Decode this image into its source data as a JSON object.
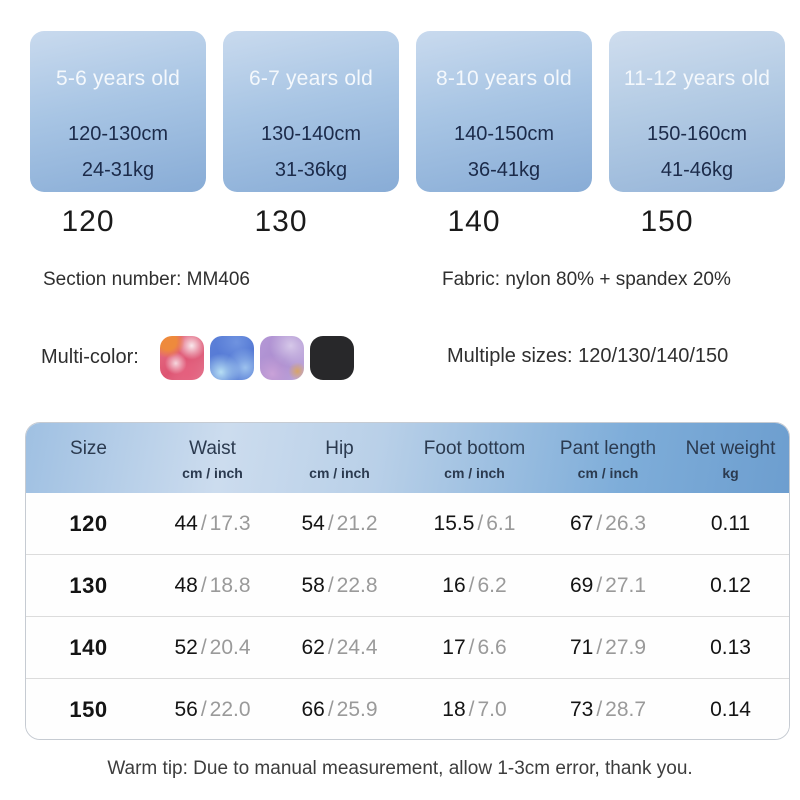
{
  "cards": [
    {
      "age": "5-6 years old",
      "height": "120-130cm",
      "weight": "24-31kg",
      "size": "120"
    },
    {
      "age": "6-7 years old",
      "height": "130-140cm",
      "weight": "31-36kg",
      "size": "130"
    },
    {
      "age": "8-10 years old",
      "height": "140-150cm",
      "weight": "36-41kg",
      "size": "140"
    },
    {
      "age": "11-12 years old",
      "height": "150-160cm",
      "weight": "41-46kg",
      "size": "150"
    }
  ],
  "info": {
    "section_number": "Section number: MM406",
    "fabric": "Fabric: nylon 80% + spandex 20%",
    "multicolor_label": "Multi-color:",
    "multiple_sizes": "Multiple sizes: 120/130/140/150",
    "swatches": [
      {
        "name": "pink-orange-marble",
        "colors": [
          "#e87186",
          "#ee8a3c",
          "#f8e4e9"
        ]
      },
      {
        "name": "blue-marble",
        "colors": [
          "#5c80d8",
          "#b6def4"
        ]
      },
      {
        "name": "purple-marble",
        "colors": [
          "#b598d6",
          "#d6c8e9"
        ]
      },
      {
        "name": "black",
        "colors": [
          "#28282a"
        ]
      }
    ]
  },
  "table": {
    "divider": "/",
    "columns": [
      {
        "label": "Size",
        "unit": ""
      },
      {
        "label": "Waist",
        "unit": "cm / inch"
      },
      {
        "label": "Hip",
        "unit": "cm / inch"
      },
      {
        "label": "Foot bottom",
        "unit": "cm / inch"
      },
      {
        "label": "Pant length",
        "unit": "cm / inch"
      },
      {
        "label": "Net weight",
        "unit": "kg"
      }
    ],
    "rows": [
      {
        "size": "120",
        "waist": {
          "cm": "44",
          "inch": "17.3"
        },
        "hip": {
          "cm": "54",
          "inch": "21.2"
        },
        "foot": {
          "cm": "15.5",
          "inch": "6.1"
        },
        "pant": {
          "cm": "67",
          "inch": "26.3"
        },
        "net": "0.11"
      },
      {
        "size": "130",
        "waist": {
          "cm": "48",
          "inch": "18.8"
        },
        "hip": {
          "cm": "58",
          "inch": "22.8"
        },
        "foot": {
          "cm": "16",
          "inch": "6.2"
        },
        "pant": {
          "cm": "69",
          "inch": "27.1"
        },
        "net": "0.12"
      },
      {
        "size": "140",
        "waist": {
          "cm": "52",
          "inch": "20.4"
        },
        "hip": {
          "cm": "62",
          "inch": "24.4"
        },
        "foot": {
          "cm": "17",
          "inch": "6.6"
        },
        "pant": {
          "cm": "71",
          "inch": "27.9"
        },
        "net": "0.13"
      },
      {
        "size": "150",
        "waist": {
          "cm": "56",
          "inch": "22.0"
        },
        "hip": {
          "cm": "66",
          "inch": "25.9"
        },
        "foot": {
          "cm": "18",
          "inch": "7.0"
        },
        "pant": {
          "cm": "73",
          "inch": "28.7"
        },
        "net": "0.14"
      }
    ]
  },
  "footer": {
    "warm_tip": "Warm tip: Due to manual measurement, allow 1-3cm error, thank you."
  },
  "colors": {
    "card_gradient_top": "#c9daee",
    "card_gradient_bottom": "#88acd6",
    "header_gradient_left": "#ccdcee",
    "header_gradient_right": "#6d9ecf",
    "card_age_text": "#f4f8fc",
    "card_metric_text": "#1c2b4a",
    "inch_text": "#9a9a9a"
  }
}
